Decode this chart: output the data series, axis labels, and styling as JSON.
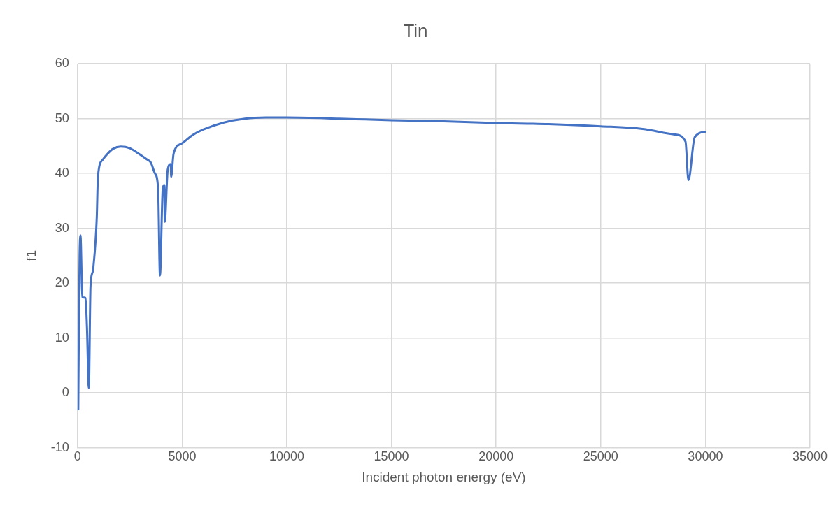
{
  "chart_data": {
    "type": "line",
    "title": "Tin",
    "xlabel": "Incident photon energy (eV)",
    "ylabel": "f1",
    "x": [
      35,
      60,
      100,
      140,
      230,
      380,
      450,
      540,
      620,
      720,
      760,
      920,
      975,
      1200,
      1435,
      1700,
      2070,
      2500,
      2930,
      3300,
      3500,
      3700,
      3850,
      3940,
      4075,
      4150,
      4170,
      4310,
      4455,
      4475,
      4590,
      5000,
      5500,
      6000,
      7000,
      8000,
      9000,
      10000,
      12500,
      15000,
      17500,
      20000,
      22500,
      25000,
      27000,
      28530,
      29050,
      29190,
      29490,
      30000
    ],
    "series": [
      {
        "color": "#4472c4",
        "values": [
          -3,
          10,
          25,
          28.7,
          17.5,
          17.3,
          12,
          0.9,
          19.4,
          22,
          23,
          32,
          39.4,
          42.5,
          43.6,
          44.5,
          44.9,
          44.6,
          43.6,
          42.6,
          42,
          40,
          37.3,
          21.4,
          37.3,
          37.9,
          31.2,
          40.7,
          41.7,
          39.4,
          43.6,
          45.5,
          47,
          48,
          49.3,
          50,
          50.2,
          50.2,
          50,
          49.7,
          49.5,
          49.2,
          49,
          48.6,
          48.1,
          47.1,
          45.8,
          38.8,
          46.6,
          47.6
        ]
      }
    ],
    "xlim": [
      0,
      35000
    ],
    "xticks": [
      0,
      5000,
      10000,
      15000,
      20000,
      25000,
      30000,
      35000
    ],
    "ylim": [
      -10,
      60
    ],
    "yticks": [
      -10,
      0,
      10,
      20,
      30,
      40,
      50,
      60
    ],
    "grid": true,
    "legend": false,
    "marker": "none",
    "line_style": "solid"
  }
}
